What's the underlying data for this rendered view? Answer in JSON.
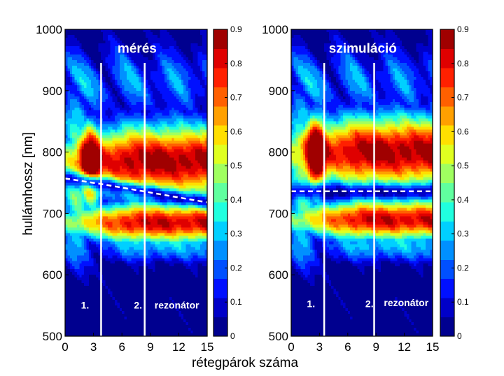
{
  "figure": {
    "xlabel": "rétegpárok száma",
    "ylabel": "hullámhossz [nm]"
  },
  "colormap": [
    "#00008f",
    "#0000c8",
    "#0010ff",
    "#0050ff",
    "#0090ff",
    "#00d0ff",
    "#20ffdf",
    "#60ff9f",
    "#a0ff60",
    "#e0ff20",
    "#ffdf00",
    "#ffa000",
    "#ff6000",
    "#ff2000",
    "#df0000",
    "#a00000"
  ],
  "chart_data": [
    {
      "type": "heatmap",
      "title": "mérés",
      "x_ticks": [
        0,
        3,
        6,
        9,
        12,
        15
      ],
      "y_ticks": [
        500,
        600,
        700,
        800,
        900,
        1000
      ],
      "xlim": [
        0,
        15
      ],
      "ylim": [
        500,
        1000
      ],
      "colorbar": {
        "range": [
          0,
          0.9
        ],
        "ticks": [
          "0",
          "0.1",
          "0.2",
          "0.3",
          "0.4",
          "0.5",
          "0.6",
          "0.7",
          "0.8",
          "0.9"
        ]
      },
      "vertical_lines_x": [
        3.8,
        8.4
      ],
      "region_labels": [
        {
          "text": "1.",
          "x": 2.1,
          "y": 545
        },
        {
          "text": "2.",
          "x": 7.7,
          "y": 545
        },
        {
          "text": "rezonátor",
          "x": 11.8,
          "y": 545
        }
      ],
      "resonance_curve": {
        "start": [
          0,
          757
        ],
        "mid": [
          3.8,
          748
        ],
        "end": [
          15,
          718
        ]
      },
      "high_band_center_nm": 785,
      "low_band_center_nm": 685,
      "peak_intensity": 0.88
    },
    {
      "type": "heatmap",
      "title": "szimuláció",
      "x_ticks": [
        0,
        3,
        6,
        9,
        12,
        15
      ],
      "y_ticks": [
        500,
        600,
        700,
        800,
        900,
        1000
      ],
      "xlim": [
        0,
        15
      ],
      "ylim": [
        500,
        1000
      ],
      "colorbar": {
        "range": [
          0,
          0.9
        ],
        "ticks": [
          "0",
          "0.1",
          "0.2",
          "0.3",
          "0.4",
          "0.5",
          "0.6",
          "0.7",
          "0.8",
          "0.9"
        ]
      },
      "vertical_lines_x": [
        3.5,
        8.8
      ],
      "region_labels": [
        {
          "text": "1.",
          "x": 2.1,
          "y": 547
        },
        {
          "text": "2.",
          "x": 8.3,
          "y": 547
        },
        {
          "text": "rezonátor",
          "x": 12.2,
          "y": 549
        }
      ],
      "resonance_curve": {
        "start": [
          0,
          736
        ],
        "mid": [
          3.5,
          736
        ],
        "end": [
          15,
          736
        ]
      },
      "high_band_center_nm": 800,
      "low_band_center_nm": 690,
      "peak_intensity": 0.9
    }
  ]
}
